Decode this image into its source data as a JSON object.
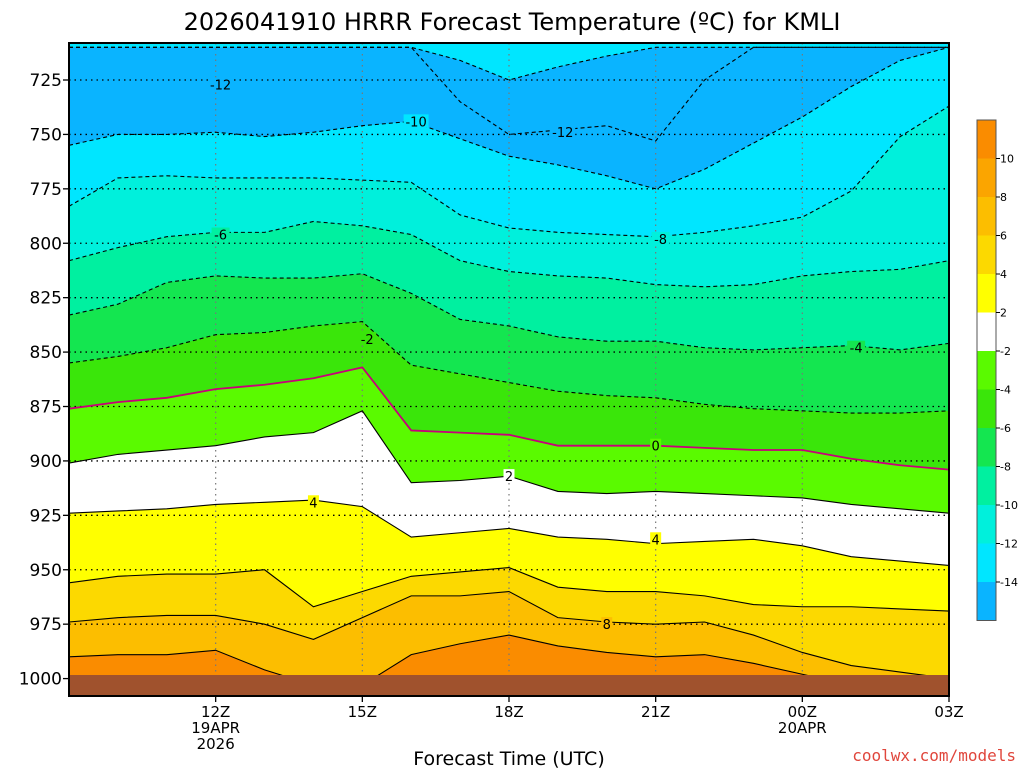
{
  "chart_data": {
    "type": "contour",
    "title": "2026041910 HRRR Forecast Temperature (ºC) for KMLI",
    "xlabel": "Forecast Time (UTC)",
    "ylabel": "",
    "watermark": "coolwx.com/models",
    "y_axis": {
      "quantity": "pressure (hPa)",
      "range": [
        1008,
        708
      ],
      "inverted": true,
      "ticks": [
        "725",
        "750",
        "775",
        "800",
        "825",
        "850",
        "875",
        "900",
        "925",
        "950",
        "975",
        "1000"
      ]
    },
    "x_axis": {
      "range_hours": [
        9,
        27
      ],
      "ticks": [
        {
          "hour": 12,
          "lines": [
            "12Z",
            "19APR",
            "2026"
          ]
        },
        {
          "hour": 15,
          "lines": [
            "15Z"
          ]
        },
        {
          "hour": 18,
          "lines": [
            "18Z"
          ]
        },
        {
          "hour": 21,
          "lines": [
            "21Z"
          ]
        },
        {
          "hour": 24,
          "lines": [
            "00Z",
            "20APR"
          ]
        },
        {
          "hour": 27,
          "lines": [
            "03Z"
          ]
        }
      ]
    },
    "grid": true,
    "ground_color": "#a0522d",
    "colorbar": {
      "labels": [
        "10",
        "8",
        "6",
        "4",
        "2",
        "-2",
        "-4",
        "-6",
        "-8",
        "-10",
        "-12",
        "-14"
      ],
      "colors": [
        "#fa8c00",
        "#fba500",
        "#fcbe00",
        "#fcd900",
        "#ffff00",
        "#ffffff",
        "#5afa00",
        "#3ae60a",
        "#14e650",
        "#00f0a0",
        "#00f0dc",
        "#00e6ff",
        "#0ab4ff"
      ]
    },
    "hours": [
      9,
      10,
      11,
      12,
      13,
      14,
      15,
      16,
      17,
      18,
      19,
      20,
      21,
      22,
      23,
      24,
      25,
      26,
      27
    ],
    "isotherms": [
      {
        "t": -14,
        "dashed": true,
        "p": [
          710,
          710,
          710,
          710,
          710,
          710,
          710,
          710,
          716,
          725,
          719,
          714,
          710,
          710,
          710,
          710,
          710,
          710,
          710
        ]
      },
      {
        "t": -12,
        "dashed": true,
        "p": [
          710,
          710,
          710,
          710,
          710,
          710,
          710,
          710,
          735,
          750,
          748,
          746,
          753,
          725,
          710,
          710,
          710,
          710,
          710
        ]
      },
      {
        "t": -10,
        "dashed": true,
        "p": [
          755,
          750,
          750,
          749,
          751,
          749,
          746,
          744,
          752,
          760,
          764,
          769,
          775,
          766,
          754,
          742,
          728,
          716,
          710
        ]
      },
      {
        "t": -8,
        "dashed": true,
        "p": [
          783,
          770,
          769,
          770,
          770,
          770,
          771,
          772,
          787,
          793,
          795,
          796,
          797,
          795,
          792,
          788,
          776,
          751,
          737
        ]
      },
      {
        "t": -6,
        "dashed": true,
        "p": [
          808,
          802,
          797,
          795,
          795,
          790,
          792,
          796,
          808,
          813,
          815,
          816,
          819,
          820,
          819,
          815,
          813,
          812,
          808
        ]
      },
      {
        "t": -4,
        "dashed": true,
        "p": [
          833,
          828,
          818,
          815,
          816,
          816,
          814,
          823,
          835,
          838,
          843,
          845,
          845,
          848,
          849,
          848,
          847,
          849,
          846
        ]
      },
      {
        "t": -2,
        "dashed": true,
        "p": [
          855,
          852,
          848,
          842,
          841,
          838,
          836,
          856,
          860,
          864,
          868,
          870,
          871,
          874,
          876,
          877,
          878,
          878,
          877
        ]
      },
      {
        "t": 0,
        "dashed": false,
        "p": [
          876,
          873,
          871,
          867,
          865,
          862,
          857,
          886,
          887,
          888,
          893,
          893,
          893,
          894,
          895,
          895,
          899,
          902,
          904
        ]
      },
      {
        "t": 2,
        "dashed": false,
        "p": [
          901,
          897,
          895,
          893,
          889,
          887,
          877,
          910,
          909,
          907,
          914,
          915,
          914,
          915,
          916,
          917,
          920,
          922,
          924
        ]
      },
      {
        "t": 4,
        "dashed": false,
        "p": [
          924,
          923,
          922,
          920,
          919,
          918,
          921,
          935,
          933,
          931,
          935,
          936,
          938,
          937,
          936,
          939,
          944,
          946,
          948
        ]
      },
      {
        "t": 6,
        "dashed": false,
        "p": [
          956,
          953,
          952,
          952,
          950,
          967,
          960,
          953,
          951,
          949,
          958,
          960,
          960,
          962,
          966,
          967,
          967,
          968,
          969
        ]
      },
      {
        "t": 8,
        "dashed": false,
        "p": [
          974,
          972,
          971,
          971,
          975,
          982,
          972,
          962,
          962,
          960,
          972,
          974,
          975,
          974,
          980,
          988,
          994,
          997,
          1000
        ]
      },
      {
        "t": 10,
        "dashed": false,
        "p": [
          990,
          989,
          989,
          987,
          996,
          1003,
          1003,
          989,
          984,
          980,
          985,
          988,
          990,
          989,
          993,
          998,
          1003,
          1004,
          1004
        ]
      }
    ],
    "contour_labels": [
      {
        "text": "-12",
        "hour": 12.1,
        "p": 727
      },
      {
        "text": "-10",
        "hour": 16.1,
        "p": 744
      },
      {
        "text": "-12",
        "hour": 19.1,
        "p": 749
      },
      {
        "text": "-6",
        "hour": 12.1,
        "p": 796
      },
      {
        "text": "-8",
        "hour": 21.1,
        "p": 798
      },
      {
        "text": "-2",
        "hour": 15.1,
        "p": 844
      },
      {
        "text": "-4",
        "hour": 25.1,
        "p": 848
      },
      {
        "text": "0",
        "hour": 21.0,
        "p": 893
      },
      {
        "text": "2",
        "hour": 18.0,
        "p": 907
      },
      {
        "text": "4",
        "hour": 14.0,
        "p": 919
      },
      {
        "text": "4",
        "hour": 21.0,
        "p": 936
      },
      {
        "text": "8",
        "hour": 20.0,
        "p": 975
      }
    ]
  }
}
